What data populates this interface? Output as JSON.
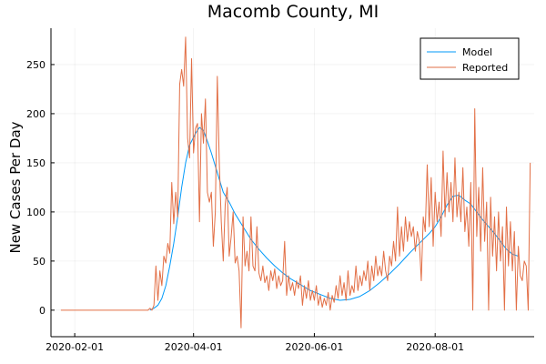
{
  "chart_data": {
    "type": "line",
    "title": "Macomb County, MI",
    "xlabel": "",
    "ylabel": "New Cases Per Day",
    "xlim": [
      "2020-01-20",
      "2020-09-20"
    ],
    "ylim": [
      -27,
      287
    ],
    "x_ticks": [
      "2020-02-01",
      "2020-04-01",
      "2020-06-01",
      "2020-08-01"
    ],
    "y_ticks": [
      0,
      50,
      100,
      150,
      200,
      250
    ],
    "grid": true,
    "legend": "top-right",
    "series": [
      {
        "name": "Model",
        "color": "#009AFA",
        "points": [
          [
            "2020-03-10",
            0
          ],
          [
            "2020-03-12",
            2
          ],
          [
            "2020-03-14",
            5
          ],
          [
            "2020-03-16",
            12
          ],
          [
            "2020-03-18",
            25
          ],
          [
            "2020-03-20",
            45
          ],
          [
            "2020-03-22",
            68
          ],
          [
            "2020-03-24",
            95
          ],
          [
            "2020-03-26",
            125
          ],
          [
            "2020-03-28",
            150
          ],
          [
            "2020-03-30",
            168
          ],
          [
            "2020-04-02",
            180
          ],
          [
            "2020-04-04",
            186
          ],
          [
            "2020-04-06",
            183
          ],
          [
            "2020-04-08",
            172
          ],
          [
            "2020-04-10",
            160
          ],
          [
            "2020-04-13",
            140
          ],
          [
            "2020-04-16",
            120
          ],
          [
            "2020-04-19",
            110
          ],
          [
            "2020-04-22",
            98
          ],
          [
            "2020-04-26",
            85
          ],
          [
            "2020-04-30",
            72
          ],
          [
            "2020-05-04",
            62
          ],
          [
            "2020-05-08",
            53
          ],
          [
            "2020-05-12",
            45
          ],
          [
            "2020-05-16",
            38
          ],
          [
            "2020-05-20",
            32
          ],
          [
            "2020-05-25",
            26
          ],
          [
            "2020-05-30",
            20
          ],
          [
            "2020-06-04",
            16
          ],
          [
            "2020-06-09",
            12
          ],
          [
            "2020-06-14",
            10
          ],
          [
            "2020-06-19",
            11
          ],
          [
            "2020-06-24",
            14
          ],
          [
            "2020-06-29",
            20
          ],
          [
            "2020-07-04",
            28
          ],
          [
            "2020-07-09",
            37
          ],
          [
            "2020-07-14",
            47
          ],
          [
            "2020-07-19",
            58
          ],
          [
            "2020-07-24",
            68
          ],
          [
            "2020-07-29",
            78
          ],
          [
            "2020-08-01",
            85
          ],
          [
            "2020-08-04",
            95
          ],
          [
            "2020-08-07",
            107
          ],
          [
            "2020-08-10",
            116
          ],
          [
            "2020-08-13",
            117
          ],
          [
            "2020-08-16",
            112
          ],
          [
            "2020-08-19",
            108
          ],
          [
            "2020-08-22",
            100
          ],
          [
            "2020-08-25",
            92
          ],
          [
            "2020-08-28",
            85
          ],
          [
            "2020-08-31",
            78
          ],
          [
            "2020-09-03",
            70
          ],
          [
            "2020-09-06",
            62
          ],
          [
            "2020-09-09",
            57
          ],
          [
            "2020-09-12",
            55
          ]
        ]
      },
      {
        "name": "Reported",
        "color": "#E26F46",
        "points": [
          [
            "2020-01-25",
            0
          ],
          [
            "2020-03-07",
            0
          ],
          [
            "2020-03-08",
            0
          ],
          [
            "2020-03-09",
            0
          ],
          [
            "2020-03-10",
            2
          ],
          [
            "2020-03-11",
            0
          ],
          [
            "2020-03-12",
            5
          ],
          [
            "2020-03-13",
            45
          ],
          [
            "2020-03-14",
            10
          ],
          [
            "2020-03-15",
            40
          ],
          [
            "2020-03-16",
            25
          ],
          [
            "2020-03-17",
            55
          ],
          [
            "2020-03-18",
            48
          ],
          [
            "2020-03-19",
            68
          ],
          [
            "2020-03-20",
            58
          ],
          [
            "2020-03-21",
            130
          ],
          [
            "2020-03-22",
            88
          ],
          [
            "2020-03-23",
            120
          ],
          [
            "2020-03-24",
            95
          ],
          [
            "2020-03-25",
            230
          ],
          [
            "2020-03-26",
            245
          ],
          [
            "2020-03-27",
            228
          ],
          [
            "2020-03-28",
            278
          ],
          [
            "2020-03-29",
            175
          ],
          [
            "2020-03-30",
            155
          ],
          [
            "2020-03-31",
            256
          ],
          [
            "2020-04-01",
            160
          ],
          [
            "2020-04-02",
            185
          ],
          [
            "2020-04-03",
            190
          ],
          [
            "2020-04-04",
            90
          ],
          [
            "2020-04-05",
            200
          ],
          [
            "2020-04-06",
            170
          ],
          [
            "2020-04-07",
            215
          ],
          [
            "2020-04-08",
            120
          ],
          [
            "2020-04-09",
            110
          ],
          [
            "2020-04-10",
            120
          ],
          [
            "2020-04-11",
            65
          ],
          [
            "2020-04-12",
            100
          ],
          [
            "2020-04-13",
            238
          ],
          [
            "2020-04-14",
            150
          ],
          [
            "2020-04-15",
            90
          ],
          [
            "2020-04-16",
            50
          ],
          [
            "2020-04-17",
            108
          ],
          [
            "2020-04-18",
            125
          ],
          [
            "2020-04-19",
            55
          ],
          [
            "2020-04-20",
            75
          ],
          [
            "2020-04-21",
            100
          ],
          [
            "2020-04-22",
            48
          ],
          [
            "2020-04-23",
            55
          ],
          [
            "2020-04-24",
            40
          ],
          [
            "2020-04-25",
            -18
          ],
          [
            "2020-04-26",
            95
          ],
          [
            "2020-04-27",
            45
          ],
          [
            "2020-04-28",
            60
          ],
          [
            "2020-04-29",
            40
          ],
          [
            "2020-04-30",
            95
          ],
          [
            "2020-05-01",
            45
          ],
          [
            "2020-05-02",
            40
          ],
          [
            "2020-05-03",
            85
          ],
          [
            "2020-05-04",
            38
          ],
          [
            "2020-05-05",
            30
          ],
          [
            "2020-05-06",
            45
          ],
          [
            "2020-05-07",
            28
          ],
          [
            "2020-05-08",
            35
          ],
          [
            "2020-05-09",
            20
          ],
          [
            "2020-05-10",
            40
          ],
          [
            "2020-05-11",
            30
          ],
          [
            "2020-05-12",
            42
          ],
          [
            "2020-05-13",
            22
          ],
          [
            "2020-05-14",
            35
          ],
          [
            "2020-05-15",
            25
          ],
          [
            "2020-05-16",
            30
          ],
          [
            "2020-05-17",
            70
          ],
          [
            "2020-05-18",
            15
          ],
          [
            "2020-05-19",
            35
          ],
          [
            "2020-05-20",
            20
          ],
          [
            "2020-05-21",
            28
          ],
          [
            "2020-05-22",
            15
          ],
          [
            "2020-05-23",
            30
          ],
          [
            "2020-05-24",
            22
          ],
          [
            "2020-05-25",
            35
          ],
          [
            "2020-05-26",
            5
          ],
          [
            "2020-05-27",
            25
          ],
          [
            "2020-05-28",
            12
          ],
          [
            "2020-05-29",
            30
          ],
          [
            "2020-05-30",
            10
          ],
          [
            "2020-05-31",
            20
          ],
          [
            "2020-06-01",
            10
          ],
          [
            "2020-06-02",
            25
          ],
          [
            "2020-06-03",
            5
          ],
          [
            "2020-06-04",
            15
          ],
          [
            "2020-06-05",
            3
          ],
          [
            "2020-06-06",
            12
          ],
          [
            "2020-06-07",
            5
          ],
          [
            "2020-06-08",
            18
          ],
          [
            "2020-06-09",
            0
          ],
          [
            "2020-06-10",
            15
          ],
          [
            "2020-06-11",
            8
          ],
          [
            "2020-06-12",
            25
          ],
          [
            "2020-06-13",
            12
          ],
          [
            "2020-06-14",
            35
          ],
          [
            "2020-06-15",
            15
          ],
          [
            "2020-06-16",
            28
          ],
          [
            "2020-06-17",
            10
          ],
          [
            "2020-06-18",
            40
          ],
          [
            "2020-06-19",
            15
          ],
          [
            "2020-06-20",
            25
          ],
          [
            "2020-06-21",
            18
          ],
          [
            "2020-06-22",
            45
          ],
          [
            "2020-06-23",
            20
          ],
          [
            "2020-06-24",
            35
          ],
          [
            "2020-06-25",
            25
          ],
          [
            "2020-06-26",
            40
          ],
          [
            "2020-06-27",
            30
          ],
          [
            "2020-06-28",
            50
          ],
          [
            "2020-06-29",
            20
          ],
          [
            "2020-06-30",
            45
          ],
          [
            "2020-07-01",
            30
          ],
          [
            "2020-07-02",
            55
          ],
          [
            "2020-07-03",
            35
          ],
          [
            "2020-07-04",
            45
          ],
          [
            "2020-07-05",
            35
          ],
          [
            "2020-07-06",
            60
          ],
          [
            "2020-07-07",
            40
          ],
          [
            "2020-07-08",
            30
          ],
          [
            "2020-07-09",
            55
          ],
          [
            "2020-07-10",
            45
          ],
          [
            "2020-07-11",
            70
          ],
          [
            "2020-07-12",
            50
          ],
          [
            "2020-07-13",
            105
          ],
          [
            "2020-07-14",
            55
          ],
          [
            "2020-07-15",
            85
          ],
          [
            "2020-07-16",
            60
          ],
          [
            "2020-07-17",
            95
          ],
          [
            "2020-07-18",
            70
          ],
          [
            "2020-07-19",
            90
          ],
          [
            "2020-07-20",
            75
          ],
          [
            "2020-07-21",
            85
          ],
          [
            "2020-07-22",
            60
          ],
          [
            "2020-07-23",
            80
          ],
          [
            "2020-07-24",
            70
          ],
          [
            "2020-07-25",
            30
          ],
          [
            "2020-07-26",
            95
          ],
          [
            "2020-07-27",
            80
          ],
          [
            "2020-07-28",
            148
          ],
          [
            "2020-07-29",
            85
          ],
          [
            "2020-07-30",
            135
          ],
          [
            "2020-07-31",
            65
          ],
          [
            "2020-08-01",
            120
          ],
          [
            "2020-08-02",
            90
          ],
          [
            "2020-08-03",
            110
          ],
          [
            "2020-08-04",
            75
          ],
          [
            "2020-08-05",
            162
          ],
          [
            "2020-08-06",
            95
          ],
          [
            "2020-08-07",
            140
          ],
          [
            "2020-08-08",
            100
          ],
          [
            "2020-08-09",
            130
          ],
          [
            "2020-08-10",
            90
          ],
          [
            "2020-08-11",
            155
          ],
          [
            "2020-08-12",
            95
          ],
          [
            "2020-08-13",
            120
          ],
          [
            "2020-08-14",
            90
          ],
          [
            "2020-08-15",
            145
          ],
          [
            "2020-08-16",
            80
          ],
          [
            "2020-08-17",
            105
          ],
          [
            "2020-08-18",
            65
          ],
          [
            "2020-08-19",
            130
          ],
          [
            "2020-08-20",
            0
          ],
          [
            "2020-08-21",
            205
          ],
          [
            "2020-08-22",
            75
          ],
          [
            "2020-08-23",
            125
          ],
          [
            "2020-08-24",
            60
          ],
          [
            "2020-08-25",
            145
          ],
          [
            "2020-08-26",
            70
          ],
          [
            "2020-08-27",
            110
          ],
          [
            "2020-08-28",
            0
          ],
          [
            "2020-08-29",
            115
          ],
          [
            "2020-08-30",
            55
          ],
          [
            "2020-08-31",
            95
          ],
          [
            "2020-09-01",
            40
          ],
          [
            "2020-09-02",
            100
          ],
          [
            "2020-09-03",
            50
          ],
          [
            "2020-09-04",
            85
          ],
          [
            "2020-09-05",
            0
          ],
          [
            "2020-09-06",
            105
          ],
          [
            "2020-09-07",
            45
          ],
          [
            "2020-09-08",
            90
          ],
          [
            "2020-09-09",
            40
          ],
          [
            "2020-09-10",
            80
          ],
          [
            "2020-09-11",
            0
          ],
          [
            "2020-09-12",
            65
          ],
          [
            "2020-09-13",
            35
          ],
          [
            "2020-09-14",
            30
          ],
          [
            "2020-09-15",
            50
          ],
          [
            "2020-09-16",
            45
          ],
          [
            "2020-09-17",
            0
          ],
          [
            "2020-09-18",
            150
          ]
        ]
      }
    ]
  }
}
